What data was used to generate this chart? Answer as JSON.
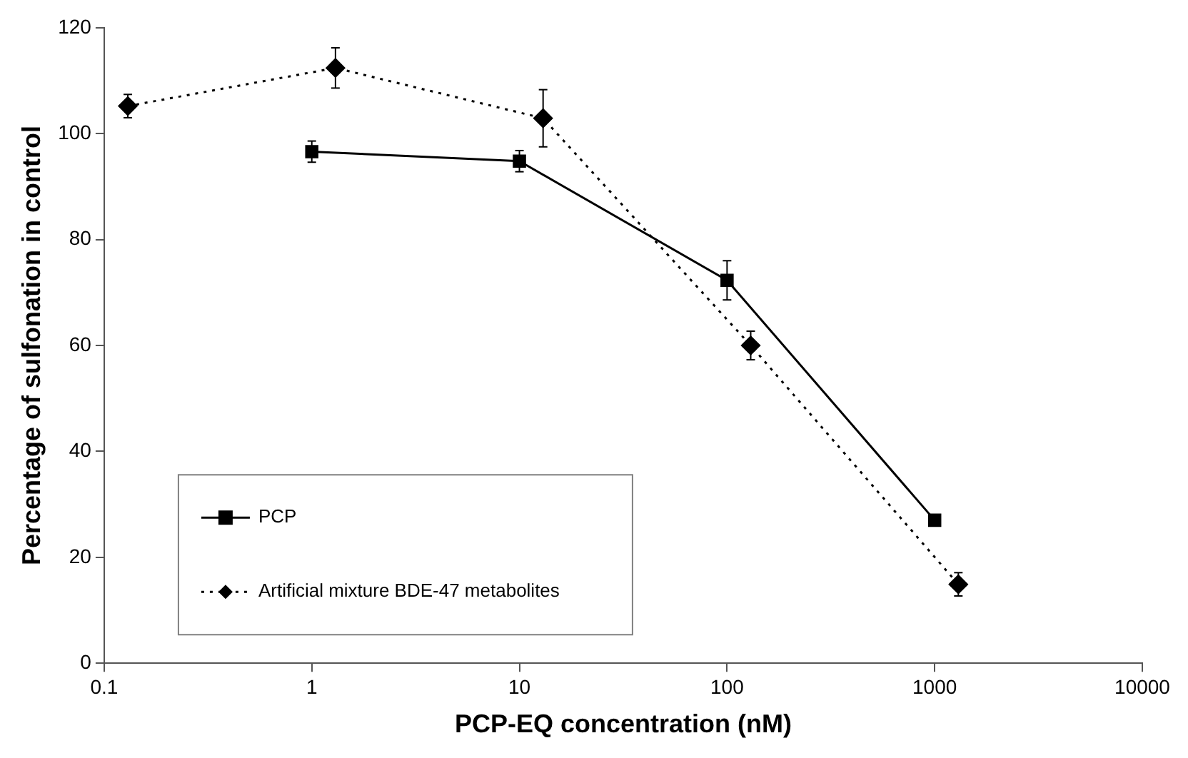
{
  "chart_data": {
    "type": "line",
    "xlabel": "PCP-EQ concentration (nM)",
    "ylabel": "Percentage of sulfonation in control",
    "log": "x",
    "xlim": [
      0.1,
      10000
    ],
    "xticks": [
      0.1,
      1,
      10,
      100,
      1000,
      10000
    ],
    "ylim": [
      0,
      120
    ],
    "yticks": [
      0,
      20,
      40,
      60,
      80,
      100,
      120
    ],
    "grid": false,
    "legend": "bottom left",
    "series": [
      {
        "name": "PCP",
        "color": "#000000",
        "marker": "square",
        "line_style": "solid",
        "x": [
          1,
          10,
          100,
          1000
        ],
        "values": [
          96.6,
          94.8,
          72.3,
          27
        ],
        "errors": [
          2,
          2,
          3.7,
          null
        ]
      },
      {
        "name": "Artificial mixture BDE-47 metabolites",
        "color": "#000000",
        "marker": "diamond",
        "line_style": "dotted",
        "x": [
          0.13,
          1.3,
          13,
          130,
          1300
        ],
        "values": [
          105.2,
          112.4,
          102.9,
          60,
          14.9
        ],
        "errors": [
          2.2,
          3.8,
          5.4,
          2.7,
          2.2
        ]
      }
    ]
  }
}
